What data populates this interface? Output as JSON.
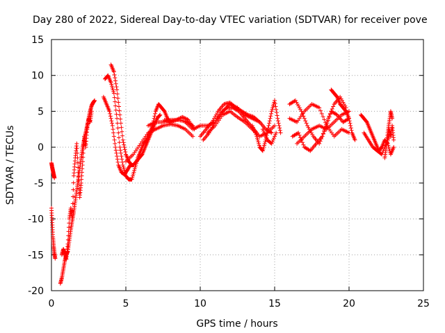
{
  "chart_data": {
    "type": "scatter",
    "title": "Day 280 of 2022, Sidereal Day-to-day VTEC variation (SDTVAR) for receiver pove",
    "xlabel": "GPS time / hours",
    "ylabel": "SDTVAR / TECUs",
    "xlim": [
      0,
      25
    ],
    "ylim": [
      -20,
      15
    ],
    "xticks": [
      "0",
      "5",
      "10",
      "15",
      "20",
      "25"
    ],
    "xtick_values": [
      0,
      5,
      10,
      15,
      20,
      25
    ],
    "yticks": [
      "15",
      "10",
      "5",
      "0",
      "-5",
      "-10",
      "-15",
      "-20"
    ],
    "ytick_values": [
      15,
      10,
      5,
      0,
      -5,
      -10,
      -15,
      -20
    ],
    "grid": true,
    "marker": "+",
    "series": [
      {
        "name": "SDTVAR",
        "color": "#ff0000",
        "tracks": [
          {
            "x": [
              0.0,
              0.05,
              0.1,
              0.15,
              0.2
            ],
            "y": [
              -2.2,
              -2.8,
              -3.3,
              -3.8,
              -4.3
            ]
          },
          {
            "x": [
              0.0,
              0.05,
              0.1,
              0.15,
              0.2,
              0.25
            ],
            "y": [
              -8.5,
              -10.5,
              -12.5,
              -13.8,
              -14.8,
              -15.5
            ]
          },
          {
            "x": [
              0.6,
              0.7,
              0.8,
              0.9,
              1.0,
              1.1,
              1.2,
              1.3,
              1.4,
              1.5,
              1.6,
              1.7,
              1.8,
              1.9,
              2.0,
              2.1,
              2.2,
              2.3,
              2.4,
              2.5,
              2.6,
              2.7,
              2.8,
              2.9
            ],
            "y": [
              -19.0,
              -18.2,
              -17.0,
              -15.8,
              -15.0,
              -14.5,
              -13.0,
              -11.5,
              -10.2,
              -9.0,
              -7.5,
              -6.0,
              -4.5,
              -3.0,
              -1.5,
              0.0,
              1.0,
              2.0,
              3.0,
              4.0,
              5.0,
              5.8,
              6.2,
              6.5
            ]
          },
          {
            "x": [
              0.7,
              0.8,
              0.9,
              1.0,
              1.1,
              1.2,
              1.3,
              1.4,
              1.5,
              1.6,
              1.7,
              1.8,
              1.9,
              2.0,
              2.1,
              2.2,
              2.3,
              2.4,
              2.5,
              2.6,
              2.7
            ],
            "y": [
              -15.0,
              -14.2,
              -14.8,
              -15.6,
              -13.5,
              -10.0,
              -8.5,
              -9.8,
              -4.0,
              -1.5,
              0.5,
              -3.5,
              -7.0,
              -5.0,
              -2.0,
              1.5,
              0.0,
              2.5,
              4.0,
              3.5,
              5.0
            ]
          },
          {
            "x": [
              3.6,
              3.8,
              4.0,
              4.2,
              4.4,
              4.6,
              4.8,
              5.0,
              5.2,
              5.4,
              5.6,
              5.8,
              6.0,
              6.2,
              6.4,
              6.6,
              6.8,
              7.0,
              7.2,
              7.4,
              7.6,
              7.8,
              8.0
            ],
            "y": [
              9.5,
              10.0,
              9.0,
              7.5,
              4.0,
              0.0,
              -2.5,
              -4.0,
              -4.5,
              -4.5,
              -3.0,
              -1.5,
              -0.5,
              0.5,
              1.0,
              2.0,
              3.0,
              5.0,
              6.0,
              5.5,
              5.0,
              4.0,
              3.5
            ]
          },
          {
            "x": [
              3.5,
              3.7,
              3.9,
              4.1,
              4.3,
              4.5,
              4.7,
              4.9,
              5.1,
              5.3,
              5.5,
              5.7,
              5.9,
              6.1,
              6.3,
              6.5,
              6.7,
              6.9,
              7.1,
              7.3
            ],
            "y": [
              7.0,
              6.0,
              5.0,
              3.0,
              0.0,
              -2.5,
              -3.5,
              -3.8,
              -3.2,
              -2.5,
              -2.5,
              -2.0,
              -1.5,
              -1.0,
              0.0,
              1.0,
              2.0,
              3.0,
              4.0,
              4.5
            ]
          },
          {
            "x": [
              4.0,
              4.2,
              4.4,
              4.6,
              4.8,
              5.0,
              5.2,
              5.4
            ],
            "y": [
              11.5,
              10.5,
              8.0,
              4.5,
              1.0,
              -1.0,
              -2.0,
              -2.5
            ]
          },
          {
            "x": [
              5.0,
              5.5,
              6.0,
              6.5,
              7.0,
              7.5,
              8.0,
              8.5,
              9.0,
              9.5
            ],
            "y": [
              -2.0,
              -1.0,
              0.5,
              2.0,
              2.5,
              3.0,
              3.2,
              3.0,
              2.5,
              1.5
            ]
          },
          {
            "x": [
              6.5,
              7.0,
              7.5,
              8.0,
              8.5,
              9.0,
              9.5
            ],
            "y": [
              3.0,
              3.5,
              3.5,
              3.8,
              3.8,
              3.6,
              3.0
            ]
          },
          {
            "x": [
              7.6,
              8.0,
              8.4,
              8.8,
              9.2,
              9.6
            ],
            "y": [
              3.8,
              3.5,
              3.8,
              4.2,
              3.8,
              2.5
            ]
          },
          {
            "x": [
              9.0,
              9.5,
              10.0,
              10.5,
              11.0,
              11.5,
              12.0,
              12.5,
              13.0,
              13.5,
              14.0
            ],
            "y": [
              3.5,
              2.5,
              3.0,
              3.0,
              3.5,
              5.0,
              6.0,
              5.5,
              4.5,
              4.0,
              3.5
            ]
          },
          {
            "x": [
              10.0,
              10.4,
              10.8,
              11.2,
              11.6,
              12.0,
              12.4,
              12.8,
              13.2,
              13.6,
              14.0,
              14.4,
              14.8
            ],
            "y": [
              1.5,
              2.5,
              3.5,
              5.0,
              6.0,
              6.2,
              5.5,
              5.0,
              4.5,
              4.2,
              3.5,
              2.5,
              2.0
            ]
          },
          {
            "x": [
              10.5,
              11.0,
              11.5,
              12.0,
              12.5,
              13.0,
              13.5,
              14.0,
              14.5,
              15.0
            ],
            "y": [
              2.0,
              3.0,
              4.5,
              5.0,
              4.2,
              3.5,
              2.5,
              1.5,
              2.0,
              3.0
            ]
          },
          {
            "x": [
              10.2,
              10.6,
              11.0,
              11.4,
              11.8,
              12.2,
              12.6,
              13.0,
              13.4,
              13.8
            ],
            "y": [
              1.0,
              2.0,
              3.5,
              4.8,
              5.5,
              5.5,
              5.0,
              4.0,
              3.0,
              2.0
            ]
          },
          {
            "x": [
              13.5,
              13.8,
              14.0,
              14.2,
              14.4,
              14.6,
              14.8,
              15.0,
              15.2,
              15.4
            ],
            "y": [
              3.0,
              1.5,
              0.0,
              -0.5,
              1.0,
              3.0,
              5.0,
              6.5,
              4.0,
              2.0
            ]
          },
          {
            "x": [
              14.2,
              14.5,
              14.8,
              15.1
            ],
            "y": [
              2.5,
              1.0,
              0.5,
              2.0
            ]
          },
          {
            "x": [
              16.0,
              16.4,
              16.8,
              17.2,
              17.6,
              18.0,
              18.4,
              18.8,
              19.2,
              19.6,
              20.0
            ],
            "y": [
              6.0,
              6.5,
              5.0,
              3.0,
              1.5,
              0.5,
              2.5,
              5.0,
              4.5,
              3.5,
              4.0
            ]
          },
          {
            "x": [
              16.0,
              16.5,
              17.0,
              17.5,
              18.0,
              18.5,
              19.0,
              19.5,
              20.0
            ],
            "y": [
              4.0,
              3.5,
              5.0,
              6.0,
              5.5,
              3.0,
              1.5,
              2.5,
              2.0
            ]
          },
          {
            "x": [
              16.2,
              16.6,
              17.0,
              17.4,
              17.8,
              18.2,
              18.6,
              19.0,
              19.4,
              19.8
            ],
            "y": [
              1.5,
              2.0,
              0.0,
              -0.5,
              0.5,
              1.5,
              4.0,
              6.0,
              7.0,
              5.5
            ]
          },
          {
            "x": [
              16.5,
              17.0,
              17.5,
              18.0,
              18.5,
              19.0,
              19.5,
              20.0
            ],
            "y": [
              0.5,
              1.5,
              2.5,
              3.0,
              2.5,
              3.5,
              4.5,
              5.0
            ]
          },
          {
            "x": [
              18.8,
              19.0,
              19.2,
              19.4,
              19.6,
              19.8,
              20.0,
              20.2,
              20.4
            ],
            "y": [
              8.0,
              7.5,
              7.0,
              6.0,
              5.5,
              5.0,
              4.0,
              2.0,
              1.0
            ]
          },
          {
            "x": [
              20.8,
              21.0,
              21.2,
              21.4,
              21.6,
              21.8,
              22.0,
              22.2,
              22.4,
              22.6,
              22.8,
              23.0
            ],
            "y": [
              4.5,
              4.0,
              3.5,
              2.5,
              1.5,
              0.5,
              -0.5,
              0.0,
              1.0,
              0.5,
              -1.0,
              0.0
            ]
          },
          {
            "x": [
              21.0,
              21.3,
              21.6,
              21.9,
              22.2,
              22.5,
              22.8
            ],
            "y": [
              2.0,
              1.0,
              0.0,
              -0.5,
              -1.0,
              0.5,
              2.0
            ]
          },
          {
            "x": [
              22.4,
              22.5,
              22.6,
              22.7,
              22.8,
              22.9
            ],
            "y": [
              -1.5,
              0.0,
              2.0,
              3.5,
              5.0,
              4.0
            ]
          },
          {
            "x": [
              22.6,
              22.7,
              22.8,
              22.9,
              23.0
            ],
            "y": [
              1.0,
              2.5,
              1.5,
              3.0,
              1.0
            ]
          }
        ]
      }
    ]
  }
}
